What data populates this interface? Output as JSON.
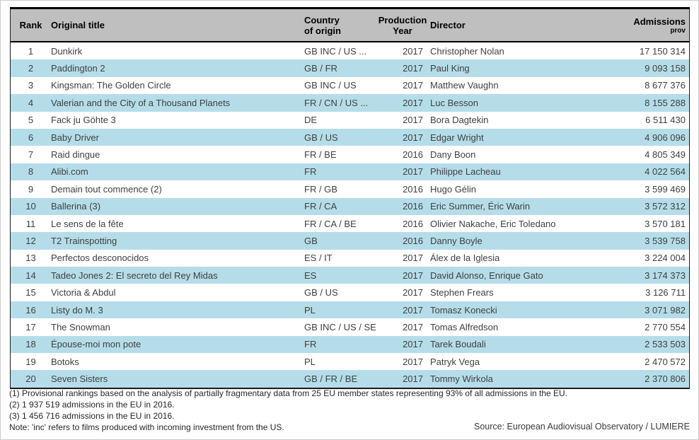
{
  "table": {
    "columns": {
      "rank": "Rank",
      "title": "Original title",
      "country_line1": "Country",
      "country_line2": "of origin",
      "year_line1": "Production",
      "year_line2": "Year",
      "director": "Director",
      "admissions": "Admissions",
      "admissions_sub": "prov"
    },
    "rows": [
      {
        "rank": "1",
        "title": "Dunkirk",
        "country": "GB INC / US ...",
        "year": "2017",
        "director": "Christopher Nolan",
        "admissions": "17 150 314"
      },
      {
        "rank": "2",
        "title": "Paddington 2",
        "country": "GB / FR",
        "year": "2017",
        "director": "Paul King",
        "admissions": "9 093 158"
      },
      {
        "rank": "3",
        "title": "Kingsman: The Golden Circle",
        "country": "GB INC / US",
        "year": "2017",
        "director": "Matthew Vaughn",
        "admissions": "8 677 376"
      },
      {
        "rank": "4",
        "title": "Valerian and the City of a Thousand Planets",
        "country": "FR / CN / US ...",
        "year": "2017",
        "director": "Luc Besson",
        "admissions": "8 155 288"
      },
      {
        "rank": "5",
        "title": "Fack ju Göhte 3",
        "country": "DE",
        "year": "2017",
        "director": "Bora Dagtekin",
        "admissions": "6 511 430"
      },
      {
        "rank": "6",
        "title": "Baby Driver",
        "country": "GB / US",
        "year": "2017",
        "director": "Edgar Wright",
        "admissions": "4 906 096"
      },
      {
        "rank": "7",
        "title": "Raid dingue",
        "country": "FR / BE",
        "year": "2016",
        "director": "Dany Boon",
        "admissions": "4 805 349"
      },
      {
        "rank": "8",
        "title": "Alibi.com",
        "country": "FR",
        "year": "2017",
        "director": "Philippe Lacheau",
        "admissions": "4 022 564"
      },
      {
        "rank": "9",
        "title": "Demain tout commence (2)",
        "country": "FR / GB",
        "year": "2016",
        "director": "Hugo Gélin",
        "admissions": "3 599 469"
      },
      {
        "rank": "10",
        "title": "Ballerina (3)",
        "country": "FR / CA",
        "year": "2016",
        "director": "Eric Summer, Éric Warin",
        "admissions": "3 572 312"
      },
      {
        "rank": "11",
        "title": "Le sens de la fête",
        "country": "FR / CA / BE",
        "year": "2016",
        "director": "Olivier Nakache, Eric Toledano",
        "admissions": "3 570 181"
      },
      {
        "rank": "12",
        "title": "T2 Trainspotting",
        "country": "GB",
        "year": "2016",
        "director": "Danny Boyle",
        "admissions": "3 539 758"
      },
      {
        "rank": "13",
        "title": "Perfectos desconocidos",
        "country": "ES / IT",
        "year": "2017",
        "director": "Álex de la Iglesia",
        "admissions": "3 224 004"
      },
      {
        "rank": "14",
        "title": "Tadeo Jones 2: El secreto del Rey Midas",
        "country": "ES",
        "year": "2017",
        "director": "David Alonso, Enrique Gato",
        "admissions": "3 174 373"
      },
      {
        "rank": "15",
        "title": "Victoria & Abdul",
        "country": "GB / US",
        "year": "2017",
        "director": "Stephen Frears",
        "admissions": "3 126 711"
      },
      {
        "rank": "16",
        "title": "Listy do M. 3",
        "country": "PL",
        "year": "2017",
        "director": "Tomasz Konecki",
        "admissions": "3 071 982"
      },
      {
        "rank": "17",
        "title": "The Snowman",
        "country": "GB INC / US / SE",
        "year": "2017",
        "director": "Tomas Alfredson",
        "admissions": "2 770 554"
      },
      {
        "rank": "18",
        "title": "Épouse-moi mon pote",
        "country": "FR",
        "year": "2017",
        "director": "Tarek Boudali",
        "admissions": "2 533 503"
      },
      {
        "rank": "19",
        "title": "Botoks",
        "country": "PL",
        "year": "2017",
        "director": "Patryk Vega",
        "admissions": "2 470 572"
      },
      {
        "rank": "20",
        "title": "Seven Sisters",
        "country": "GB / FR / BE",
        "year": "2017",
        "director": "Tommy Wirkola",
        "admissions": "2 370 806"
      }
    ]
  },
  "footnotes": [
    "(1) Provisional rankings based on the analysis of partially fragmentary data from 25 EU member states representing 93% of all admissions in the EU.",
    "(2) 1 937 519  admissions in the EU in 2016.",
    "(3) 1 456 716 admissions in the EU in 2016.",
    "Note: 'inc' refers to films produced with incoming investment from the US."
  ],
  "source": "Source: European Audiovisual Observatory / LUMIERE",
  "colors": {
    "header_bg": "#bfbfbf",
    "row_alt": "#b5dde9",
    "border": "#1a1a1a",
    "body_text": "#3f3f3f"
  }
}
